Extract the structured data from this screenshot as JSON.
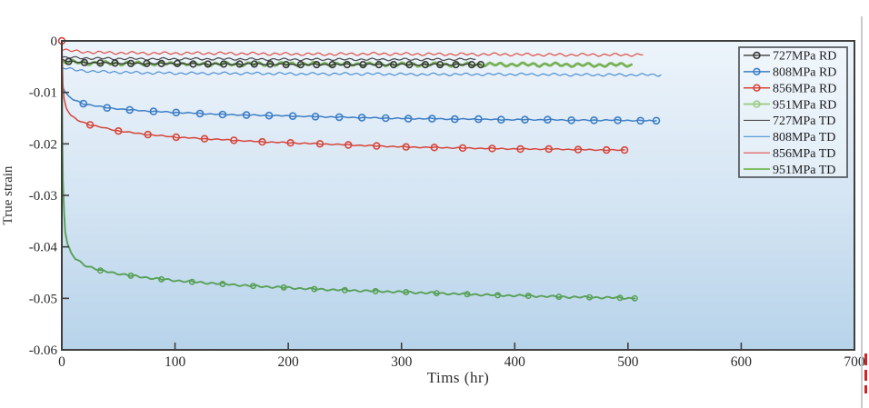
{
  "page": {
    "background": "#ffffff",
    "edge_line_color": "#c7cbd0",
    "artifact_color": "#cf2525"
  },
  "chart_data": {
    "type": "line",
    "title": "",
    "xlabel": "Tims (hr)",
    "ylabel": "True strain",
    "xlim": [
      0,
      700
    ],
    "ylim": [
      -0.06,
      0
    ],
    "xticks": [
      0,
      100,
      200,
      300,
      400,
      500,
      600,
      700
    ],
    "yticks": [
      0,
      -0.01,
      -0.02,
      -0.03,
      -0.04,
      -0.05,
      -0.06
    ],
    "ytick_labels": [
      "0",
      "-0.01",
      "-0.02",
      "-0.03",
      "-0.04",
      "-0.05",
      "-0.06"
    ],
    "grid": false,
    "legend_position": "top-right",
    "axis_color": "#3f3f3f",
    "tick_label_color": "#2b2b2b",
    "legend_text_color": "#1d1d1d",
    "plot_bg_top": "#edf4fb",
    "plot_bg_mid": "#d5e5f3",
    "plot_bg_bottom": "#b7d3ea",
    "series": [
      {
        "name": "727MPa RD",
        "color": "#3a3a3a",
        "width": 1.3,
        "z": 5,
        "wavy": true,
        "amp": 0.0001,
        "marker": true,
        "marker_from": 1,
        "marker_r": 3.3,
        "points": [
          [
            0,
            -0.0036
          ],
          [
            6,
            -0.004
          ],
          [
            20,
            -0.0042
          ],
          [
            34,
            -0.0043
          ],
          [
            47,
            -0.0043
          ],
          [
            61,
            -0.0044
          ],
          [
            75,
            -0.0044
          ],
          [
            88,
            -0.0044
          ],
          [
            102,
            -0.0044
          ],
          [
            116,
            -0.0045
          ],
          [
            129,
            -0.0045
          ],
          [
            143,
            -0.0045
          ],
          [
            157,
            -0.0045
          ],
          [
            170,
            -0.0045
          ],
          [
            184,
            -0.0045
          ],
          [
            198,
            -0.0046
          ],
          [
            211,
            -0.0046
          ],
          [
            225,
            -0.0046
          ],
          [
            239,
            -0.0046
          ],
          [
            252,
            -0.0046
          ],
          [
            266,
            -0.0046
          ],
          [
            280,
            -0.0046
          ],
          [
            293,
            -0.0046
          ],
          [
            307,
            -0.0046
          ],
          [
            321,
            -0.0046
          ],
          [
            334,
            -0.0046
          ],
          [
            348,
            -0.0046
          ],
          [
            362,
            -0.0046
          ],
          [
            370,
            -0.0046
          ]
        ]
      },
      {
        "name": "808MPa RD",
        "color": "#3d7ec6",
        "width": 1.5,
        "z": 6,
        "wavy": true,
        "amp": 8e-05,
        "marker": true,
        "marker_from": 5,
        "marker_r": 3.5,
        "points": [
          [
            0,
            -0.0078
          ],
          [
            1,
            -0.009
          ],
          [
            3,
            -0.01
          ],
          [
            6,
            -0.0108
          ],
          [
            10,
            -0.0114
          ],
          [
            19,
            -0.0122
          ],
          [
            40,
            -0.013
          ],
          [
            60,
            -0.0134
          ],
          [
            81,
            -0.0137
          ],
          [
            101,
            -0.0139
          ],
          [
            122,
            -0.0141
          ],
          [
            142,
            -0.0143
          ],
          [
            163,
            -0.0144
          ],
          [
            183,
            -0.0145
          ],
          [
            204,
            -0.0146
          ],
          [
            224,
            -0.0147
          ],
          [
            245,
            -0.0148
          ],
          [
            265,
            -0.0149
          ],
          [
            286,
            -0.015
          ],
          [
            306,
            -0.0151
          ],
          [
            327,
            -0.0151
          ],
          [
            347,
            -0.0152
          ],
          [
            368,
            -0.0152
          ],
          [
            388,
            -0.0153
          ],
          [
            409,
            -0.0153
          ],
          [
            429,
            -0.0153
          ],
          [
            450,
            -0.0154
          ],
          [
            470,
            -0.0154
          ],
          [
            491,
            -0.0154
          ],
          [
            511,
            -0.0155
          ],
          [
            525,
            -0.0155
          ]
        ]
      },
      {
        "name": "856MPa RD",
        "color": "#d6453a",
        "width": 1.5,
        "z": 7,
        "wavy": true,
        "amp": 8e-05,
        "marker": true,
        "marker_from": 6,
        "extra_markers": [
          0
        ],
        "marker_r": 3.4,
        "points": [
          [
            0,
            0
          ],
          [
            1,
            -0.0085
          ],
          [
            2,
            -0.0113
          ],
          [
            4,
            -0.0131
          ],
          [
            8,
            -0.0145
          ],
          [
            14,
            -0.0154
          ],
          [
            25,
            -0.0163
          ],
          [
            50,
            -0.0175
          ],
          [
            76,
            -0.0182
          ],
          [
            101,
            -0.0187
          ],
          [
            126,
            -0.019
          ],
          [
            152,
            -0.0193
          ],
          [
            177,
            -0.0196
          ],
          [
            202,
            -0.0198
          ],
          [
            228,
            -0.02
          ],
          [
            253,
            -0.0202
          ],
          [
            278,
            -0.0204
          ],
          [
            304,
            -0.0206
          ],
          [
            329,
            -0.0207
          ],
          [
            354,
            -0.0208
          ],
          [
            380,
            -0.0209
          ],
          [
            405,
            -0.021
          ],
          [
            430,
            -0.021
          ],
          [
            456,
            -0.0211
          ],
          [
            481,
            -0.0212
          ],
          [
            497,
            -0.0212
          ]
        ]
      },
      {
        "name": "951MPa RD",
        "color": "#58a158",
        "legend_color": "#9ccc86",
        "width": 1.9,
        "z": 8,
        "wavy": true,
        "amp": 0.00015,
        "marker": true,
        "marker_from": 9,
        "marker_r": 2.7,
        "points": [
          [
            0,
            0
          ],
          [
            0.5,
            -0.018
          ],
          [
            1,
            -0.027
          ],
          [
            2,
            -0.033
          ],
          [
            3,
            -0.037
          ],
          [
            5,
            -0.0395
          ],
          [
            8,
            -0.0412
          ],
          [
            12,
            -0.0423
          ],
          [
            20,
            -0.0435
          ],
          [
            34,
            -0.0446
          ],
          [
            61,
            -0.0456
          ],
          [
            88,
            -0.0463
          ],
          [
            115,
            -0.0468
          ],
          [
            142,
            -0.0472
          ],
          [
            169,
            -0.0476
          ],
          [
            196,
            -0.0479
          ],
          [
            223,
            -0.0482
          ],
          [
            250,
            -0.0484
          ],
          [
            277,
            -0.0486
          ],
          [
            304,
            -0.0488
          ],
          [
            331,
            -0.049
          ],
          [
            358,
            -0.0492
          ],
          [
            385,
            -0.0494
          ],
          [
            412,
            -0.0495
          ],
          [
            439,
            -0.0497
          ],
          [
            466,
            -0.0498
          ],
          [
            493,
            -0.0499
          ],
          [
            506,
            -0.05
          ]
        ]
      },
      {
        "name": "727MPa TD",
        "color": "#4a4a4a",
        "width": 1.2,
        "z": 2,
        "wavy": true,
        "amp": 0.00018,
        "marker": false,
        "points": [
          [
            0,
            -0.0032
          ],
          [
            30,
            -0.0034
          ],
          [
            80,
            -0.0035
          ],
          [
            140,
            -0.0035
          ],
          [
            200,
            -0.0036
          ],
          [
            260,
            -0.0036
          ],
          [
            320,
            -0.0036
          ],
          [
            365,
            -0.0036
          ]
        ]
      },
      {
        "name": "808MPa TD",
        "color": "#4c8fd1",
        "width": 1.2,
        "z": 4,
        "wavy": true,
        "amp": 0.0002,
        "marker": false,
        "points": [
          [
            0,
            -0.0051
          ],
          [
            12,
            -0.0057
          ],
          [
            35,
            -0.006
          ],
          [
            70,
            -0.0062
          ],
          [
            110,
            -0.0063
          ],
          [
            160,
            -0.0063
          ],
          [
            210,
            -0.0064
          ],
          [
            260,
            -0.0064
          ],
          [
            310,
            -0.0065
          ],
          [
            360,
            -0.0065
          ],
          [
            410,
            -0.0065
          ],
          [
            460,
            -0.0066
          ],
          [
            510,
            -0.0066
          ],
          [
            529,
            -0.0066
          ]
        ]
      },
      {
        "name": "856MPa TD",
        "color": "#df4f44",
        "width": 1.2,
        "z": 3,
        "wavy": true,
        "amp": 0.00022,
        "marker": false,
        "points": [
          [
            0,
            -0.0017
          ],
          [
            15,
            -0.0021
          ],
          [
            40,
            -0.0023
          ],
          [
            80,
            -0.0024
          ],
          [
            130,
            -0.0024
          ],
          [
            180,
            -0.0025
          ],
          [
            230,
            -0.0026
          ],
          [
            280,
            -0.0025
          ],
          [
            330,
            -0.0026
          ],
          [
            380,
            -0.0026
          ],
          [
            430,
            -0.0027
          ],
          [
            480,
            -0.0027
          ],
          [
            513,
            -0.0027
          ]
        ]
      },
      {
        "name": "951MPa TD",
        "color": "#76b254",
        "legend_color": "#7bbb62",
        "width": 2.8,
        "z": 1,
        "wavy": true,
        "amp": 0.00028,
        "marker": false,
        "points": [
          [
            0,
            -0.004
          ],
          [
            25,
            -0.0043
          ],
          [
            70,
            -0.0044
          ],
          [
            130,
            -0.0045
          ],
          [
            190,
            -0.0045
          ],
          [
            250,
            -0.0045
          ],
          [
            310,
            -0.0046
          ],
          [
            370,
            -0.0046
          ],
          [
            430,
            -0.0046
          ],
          [
            470,
            -0.0047
          ],
          [
            503,
            -0.0046
          ]
        ]
      }
    ]
  }
}
